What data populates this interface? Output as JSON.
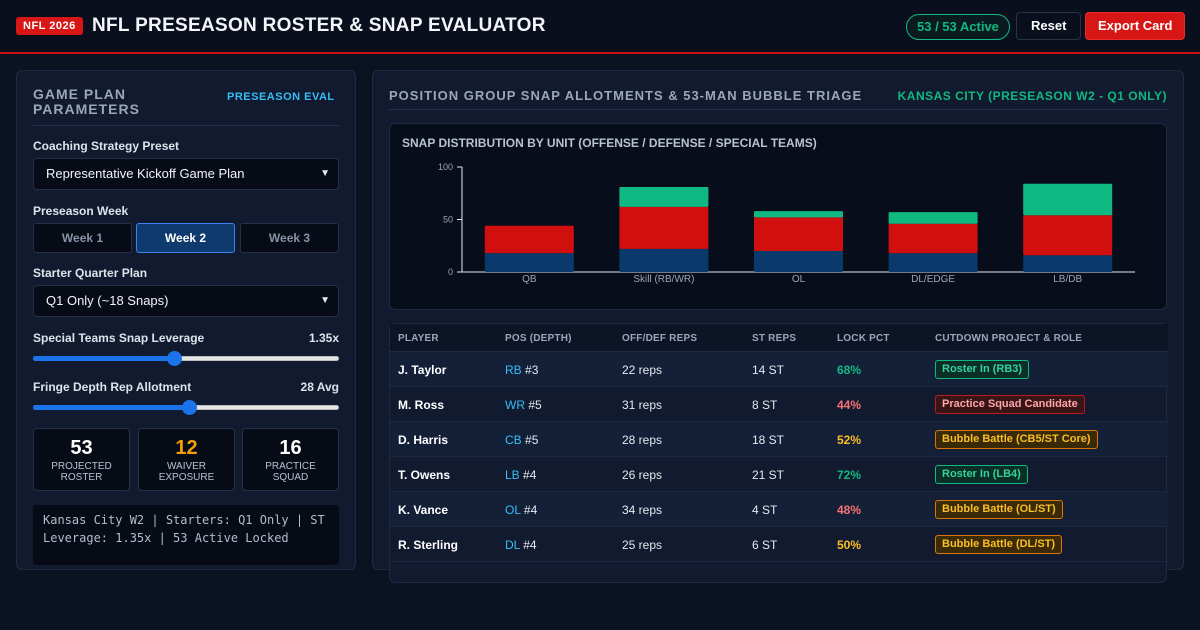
{
  "header": {
    "year_badge": "NFL 2026",
    "title": "NFL PRESEASON ROSTER & SNAP EVALUATOR",
    "active_count": "53 / 53 Active",
    "reset_label": "Reset",
    "export_label": "Export Card"
  },
  "left_panel": {
    "title": "GAME PLAN PARAMETERS",
    "tag": "PRESEASON EVAL",
    "strategy_label": "Coaching Strategy Preset",
    "strategy_value": "Representative Kickoff Game Plan",
    "week_label": "Preseason Week",
    "weeks": [
      "Week 1",
      "Week 2",
      "Week 3"
    ],
    "active_week": 1,
    "starter_label": "Starter Quarter Plan",
    "starter_value": "Q1 Only (~18 Snaps)",
    "st_label": "Special Teams Snap Leverage",
    "st_value": "1.35x",
    "st_level": 0.46,
    "fringe_label": "Fringe Depth Rep Allotment",
    "fringe_value": "28 Avg",
    "fringe_level": 0.51,
    "stats": [
      {
        "num": "53",
        "label": "PROJECTED ROSTER",
        "warn": false
      },
      {
        "num": "12",
        "label": "WAIVER EXPOSURE",
        "warn": true
      },
      {
        "num": "16",
        "label": "PRACTICE SQUAD",
        "warn": false
      }
    ],
    "summary": "Kansas City W2 | Starters: Q1 Only | ST Leverage: 1.35x | 53 Active Locked"
  },
  "right_panel": {
    "title": "POSITION GROUP SNAP ALLOTMENTS & 53-MAN BUBBLE TRIAGE",
    "tag": "KANSAS CITY (PRESEASON W2 - Q1 ONLY)",
    "chart_title": "SNAP DISTRIBUTION BY UNIT (OFFENSE / DEFENSE / SPECIAL TEAMS)"
  },
  "chart_data": {
    "type": "bar",
    "stacked": true,
    "categories": [
      "QB",
      "Skill (RB/WR)",
      "OL",
      "DL/EDGE",
      "LB/DB"
    ],
    "series": [
      {
        "values": [
          18,
          22,
          20,
          18,
          16
        ],
        "color": "#0a3a6b"
      },
      {
        "values": [
          26,
          40,
          32,
          28,
          38
        ],
        "color": "#d10f0f"
      },
      {
        "values": [
          0,
          19,
          6,
          11,
          30
        ],
        "color": "#10b981"
      }
    ],
    "ylim": [
      0,
      100
    ],
    "yticks": [
      0,
      50,
      100
    ],
    "title": "SNAP DISTRIBUTION BY UNIT (OFFENSE / DEFENSE / SPECIAL TEAMS)",
    "xlabel": "",
    "ylabel": "",
    "grid": false
  },
  "table": {
    "headers": [
      "PLAYER",
      "POS (DEPTH)",
      "OFF/DEF REPS",
      "ST REPS",
      "LOCK PCT",
      "CUTDOWN PROJECT & ROLE"
    ],
    "rows": [
      {
        "player": "J. Taylor",
        "pos": "RB",
        "depth": "#3",
        "reps": "22 reps",
        "st": "14 ST",
        "lock": "68%",
        "lock_tone": "good",
        "role": "Roster In (RB3)",
        "role_tone": "green"
      },
      {
        "player": "M. Ross",
        "pos": "WR",
        "depth": "#5",
        "reps": "31 reps",
        "st": "8 ST",
        "lock": "44%",
        "lock_tone": "bad",
        "role": "Practice Squad Candidate",
        "role_tone": "red"
      },
      {
        "player": "D. Harris",
        "pos": "CB",
        "depth": "#5",
        "reps": "28 reps",
        "st": "18 ST",
        "lock": "52%",
        "lock_tone": "mid",
        "role": "Bubble Battle (CB5/ST Core)",
        "role_tone": "amber"
      },
      {
        "player": "T. Owens",
        "pos": "LB",
        "depth": "#4",
        "reps": "26 reps",
        "st": "21 ST",
        "lock": "72%",
        "lock_tone": "good",
        "role": "Roster In (LB4)",
        "role_tone": "green"
      },
      {
        "player": "K. Vance",
        "pos": "OL",
        "depth": "#4",
        "reps": "34 reps",
        "st": "4 ST",
        "lock": "48%",
        "lock_tone": "bad",
        "role": "Bubble Battle (OL/ST)",
        "role_tone": "amber"
      },
      {
        "player": "R. Sterling",
        "pos": "DL",
        "depth": "#4",
        "reps": "25 reps",
        "st": "6 ST",
        "lock": "50%",
        "lock_tone": "mid",
        "role": "Bubble Battle (DL/ST)",
        "role_tone": "amber"
      }
    ]
  }
}
